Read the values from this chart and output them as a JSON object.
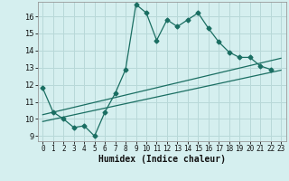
{
  "xlabel": "Humidex (Indice chaleur)",
  "bg_color": "#d5efef",
  "line_color": "#1a6e62",
  "grid_color": "#b8d8d8",
  "xlim": [
    -0.5,
    23.5
  ],
  "ylim": [
    8.7,
    16.85
  ],
  "xticks": [
    0,
    1,
    2,
    3,
    4,
    5,
    6,
    7,
    8,
    9,
    10,
    11,
    12,
    13,
    14,
    15,
    16,
    17,
    18,
    19,
    20,
    21,
    22,
    23
  ],
  "yticks": [
    9,
    10,
    11,
    12,
    13,
    14,
    15,
    16
  ],
  "line1_x": [
    0,
    1,
    2,
    3,
    4,
    5,
    6,
    7,
    8,
    9,
    10,
    11,
    12,
    13,
    14,
    15,
    16,
    17,
    18,
    19,
    20,
    21,
    22
  ],
  "line1_y": [
    11.8,
    10.4,
    10.0,
    9.5,
    9.6,
    9.0,
    10.4,
    11.5,
    12.9,
    16.7,
    16.2,
    14.6,
    15.8,
    15.4,
    15.8,
    16.2,
    15.3,
    14.5,
    13.9,
    13.6,
    13.6,
    13.1,
    12.9
  ],
  "line2_x": [
    0,
    23
  ],
  "line2_y": [
    9.85,
    12.85
  ],
  "line3_x": [
    0,
    23
  ],
  "line3_y": [
    10.25,
    13.55
  ],
  "markersize": 2.5,
  "linewidth": 0.9,
  "xlabel_fontsize": 7,
  "tick_fontsize": 5.5
}
